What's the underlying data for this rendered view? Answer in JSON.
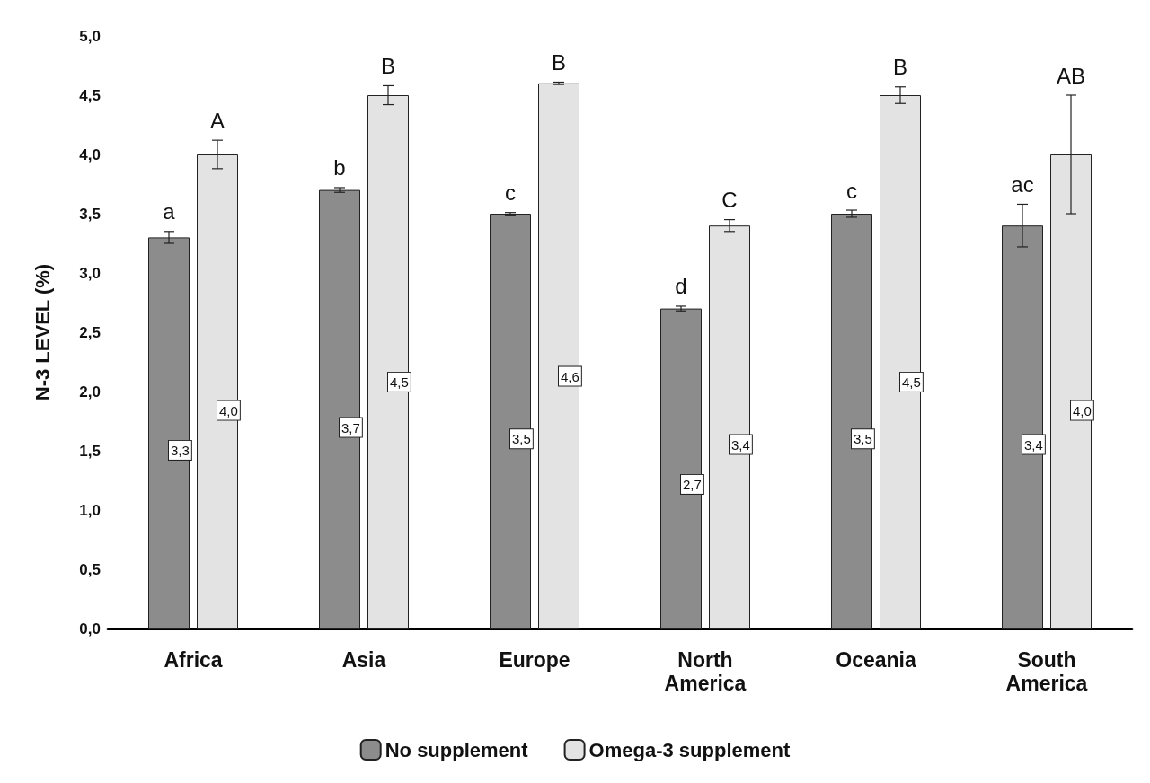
{
  "chart_data": {
    "type": "bar",
    "ylabel": "N-3 LEVEL (%)",
    "categories": [
      "Africa",
      "Asia",
      "Europe",
      "North\nAmerica",
      "Oceania",
      "South\nAmerica"
    ],
    "series": [
      {
        "name": "No supplement",
        "color": "#8c8c8c",
        "values": [
          3.3,
          3.7,
          3.5,
          2.7,
          3.5,
          3.4
        ],
        "errors": [
          0.05,
          0.02,
          0.01,
          0.02,
          0.03,
          0.18
        ],
        "value_labels": [
          "3,3",
          "3,7",
          "3,5",
          "2,7",
          "3,5",
          "3,4"
        ]
      },
      {
        "name": "Omega-3 supplement",
        "color": "#e3e3e3",
        "values": [
          4.0,
          4.5,
          4.6,
          3.4,
          4.5,
          4.0
        ],
        "errors": [
          0.12,
          0.08,
          0.01,
          0.05,
          0.07,
          0.5
        ],
        "value_labels": [
          "4,0",
          "4,5",
          "4,6",
          "3,4",
          "4,5",
          "4,0"
        ]
      }
    ],
    "ylim": [
      0,
      5
    ],
    "yticks": [
      {
        "value": 0,
        "label": "0,0"
      },
      {
        "value": 0.5,
        "label": "0,5"
      },
      {
        "value": 1,
        "label": "1,0"
      },
      {
        "value": 1.5,
        "label": "1,5"
      },
      {
        "value": 2,
        "label": "2,0"
      },
      {
        "value": 2.5,
        "label": "2,5"
      },
      {
        "value": 3,
        "label": "3,0"
      },
      {
        "value": 3.5,
        "label": "3,5"
      },
      {
        "value": 4,
        "label": "4,0"
      },
      {
        "value": 4.5,
        "label": "4,5"
      },
      {
        "value": 5,
        "label": "5,0"
      }
    ],
    "annotations": [
      "a",
      "A",
      "b",
      "B",
      "c",
      "B",
      "d",
      "C",
      "c",
      "B",
      "ac",
      "AB"
    ],
    "grid": false,
    "legend": "bottom"
  }
}
